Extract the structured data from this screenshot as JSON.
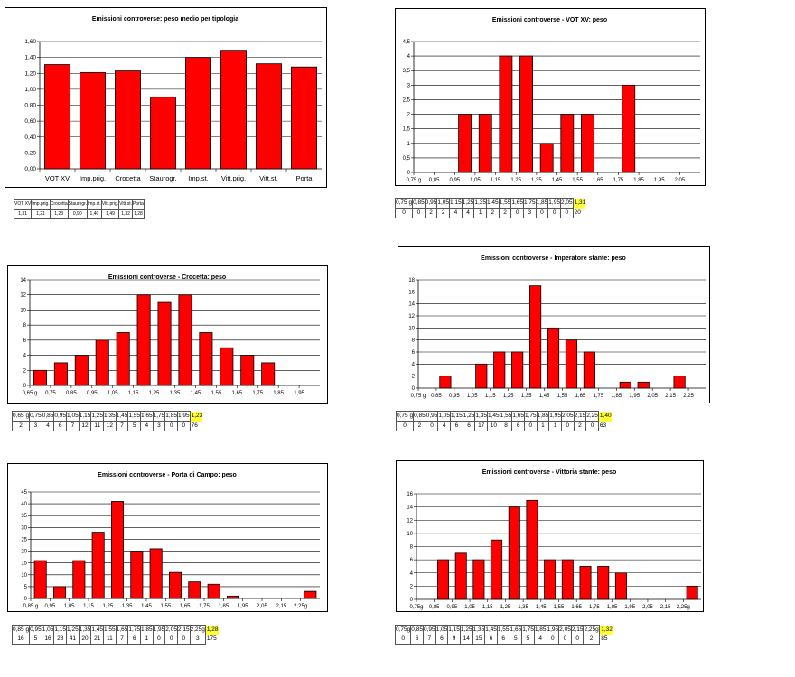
{
  "chart_data": [
    {
      "type": "bar",
      "title": "Emissioni controverse: peso medio per tipologia",
      "categories": [
        "VOT XV",
        "Imp.prig.",
        "Crocetta",
        "Staurogr.",
        "Imp.st.",
        "Vitt.prig.",
        "Vitt.st.",
        "Porta"
      ],
      "values": [
        1.31,
        1.21,
        1.23,
        0.9,
        1.4,
        1.49,
        1.32,
        1.28
      ],
      "yticks": [
        "0,00",
        "0,20",
        "0,40",
        "0,60",
        "0,80",
        "1,00",
        "1,20",
        "1,40",
        "1,60"
      ],
      "ylim": [
        0,
        1.6
      ],
      "bar_color": "#ff0000",
      "table": {
        "headers": [
          "VOT XV",
          "Imp.prig.",
          "Crocetta",
          "Staurogr.",
          "Imp.st.",
          "Vitt.prig.",
          "Vitt.st.",
          "Porta"
        ],
        "values": [
          "1,31",
          "1,21",
          "1,23",
          "0,90",
          "1,40",
          "1,49",
          "1,32",
          "1,28"
        ]
      }
    },
    {
      "type": "bar",
      "title": "Emissioni controverse - VOT XV: peso",
      "categories": [
        "0,75 g",
        "0,85",
        "0,95",
        "1,05",
        "1,15",
        "1,25",
        "1,35",
        "1,45",
        "1,55",
        "1,65",
        "1,75",
        "1,85",
        "1,95",
        "2,05"
      ],
      "values": [
        0,
        0,
        2,
        2,
        4,
        4,
        1,
        2,
        2,
        0,
        3,
        0,
        0,
        0
      ],
      "yticks": [
        "0",
        "0,5",
        "1",
        "1,5",
        "2",
        "2,5",
        "3",
        "3,5",
        "4",
        "4,5"
      ],
      "ylim": [
        0,
        4.5
      ],
      "bar_color": "#ff0000",
      "table": {
        "headers": [
          "0,75 g",
          "0,85",
          "0,95",
          "1,05",
          "1,15",
          "1,25",
          "1,35",
          "1,45",
          "1,55",
          "1,65",
          "1,75",
          "1,85",
          "1,95",
          "2,05"
        ],
        "values": [
          "0",
          "0",
          "2",
          "2",
          "4",
          "4",
          "1",
          "2",
          "2",
          "0",
          "3",
          "0",
          "0",
          "0"
        ],
        "mean": "1,31",
        "total": "20"
      }
    },
    {
      "type": "bar",
      "title": "Emissioni controverse - Crocetta: peso",
      "categories": [
        "0,65 g",
        "0,75",
        "0,85",
        "0,95",
        "1,05",
        "1,15",
        "1,25",
        "1,35",
        "1,45",
        "1,55",
        "1,65",
        "1,75",
        "1,85",
        "1,95"
      ],
      "values": [
        2,
        3,
        4,
        6,
        7,
        12,
        11,
        12,
        7,
        5,
        4,
        3,
        0,
        0
      ],
      "yticks": [
        "0",
        "2",
        "4",
        "6",
        "8",
        "10",
        "12",
        "14"
      ],
      "ylim": [
        0,
        14
      ],
      "bar_color": "#ff0000",
      "table": {
        "headers": [
          "0,65 g",
          "0,75",
          "0,85",
          "0,95",
          "1,05",
          "1,15",
          "1,25",
          "1,35",
          "1,45",
          "1,55",
          "1,65",
          "1,75",
          "1,85",
          "1,95"
        ],
        "values": [
          "2",
          "3",
          "4",
          "6",
          "7",
          "12",
          "11",
          "12",
          "7",
          "5",
          "4",
          "3",
          "0",
          "0"
        ],
        "mean": "1,23",
        "total": "76"
      }
    },
    {
      "type": "bar",
      "title": "Emissioni controverse - Imperatore stante: peso",
      "categories": [
        "0,75 g",
        "0,85",
        "0,95",
        "1,05",
        "1,15",
        "1,25",
        "1,35",
        "1,45",
        "1,55",
        "1,65",
        "1,75",
        "1,85",
        "1,95",
        "2,05",
        "2,15",
        "2,25"
      ],
      "values": [
        0,
        2,
        0,
        4,
        6,
        6,
        17,
        10,
        8,
        6,
        0,
        1,
        1,
        0,
        2,
        0
      ],
      "yticks": [
        "0",
        "2",
        "4",
        "6",
        "8",
        "10",
        "12",
        "14",
        "16",
        "18"
      ],
      "ylim": [
        0,
        18
      ],
      "bar_color": "#ff0000",
      "table": {
        "headers": [
          "0,75 g",
          "0,85",
          "0,95",
          "1,05",
          "1,15",
          "1,25",
          "1,35",
          "1,45",
          "1,55",
          "1,65",
          "1,75",
          "1,85",
          "1,95",
          "2,05",
          "2,15",
          "2,25"
        ],
        "values": [
          "0",
          "2",
          "0",
          "4",
          "6",
          "6",
          "17",
          "10",
          "8",
          "6",
          "0",
          "1",
          "1",
          "0",
          "2",
          "0"
        ],
        "mean": "1,40",
        "total": "63"
      }
    },
    {
      "type": "bar",
      "title": "Emissioni controverse - Porta di Campo: peso",
      "categories": [
        "0,85 g",
        "0,95",
        "1,05",
        "1,15",
        "1,25",
        "1,35",
        "1,45",
        "1,55",
        "1,65",
        "1,75",
        "1,85",
        "1,95",
        "2,05",
        "2,15",
        "2,25g"
      ],
      "values": [
        16,
        5,
        16,
        28,
        41,
        20,
        21,
        11,
        7,
        6,
        1,
        0,
        0,
        0,
        3
      ],
      "yticks": [
        "0",
        "5",
        "10",
        "15",
        "20",
        "25",
        "30",
        "35",
        "40",
        "45"
      ],
      "ylim": [
        0,
        45
      ],
      "bar_color": "#ff0000",
      "table": {
        "headers": [
          "0,85 g",
          "0,95",
          "1,05",
          "1,15",
          "1,25",
          "1,35",
          "1,45",
          "1,55",
          "1,65",
          "1,75",
          "1,85",
          "1,95",
          "2,05",
          "2,15",
          "2,25g"
        ],
        "values": [
          "16",
          "5",
          "16",
          "28",
          "41",
          "20",
          "21",
          "11",
          "7",
          "6",
          "1",
          "0",
          "0",
          "0",
          "3"
        ],
        "mean": "1,28",
        "total": "175"
      }
    },
    {
      "type": "bar",
      "title": "Emissioni controverse - Vittoria stante: peso",
      "categories": [
        "0,75g",
        "0,85",
        "0,95",
        "1,05",
        "1,15",
        "1,25",
        "1,35",
        "1,45",
        "1,55",
        "1,65",
        "1,75",
        "1,85",
        "1,95",
        "2,05",
        "2,15",
        "2,25g"
      ],
      "values": [
        0,
        6,
        7,
        6,
        9,
        14,
        15,
        6,
        6,
        5,
        5,
        4,
        0,
        0,
        0,
        2
      ],
      "yticks": [
        "0",
        "2",
        "4",
        "6",
        "8",
        "10",
        "12",
        "14",
        "16"
      ],
      "ylim": [
        0,
        16
      ],
      "bar_color": "#ff0000",
      "table": {
        "headers": [
          "0,75g",
          "0,85",
          "0,95",
          "1,05",
          "1,15",
          "1,25",
          "1,35",
          "1,45",
          "1,55",
          "1,65",
          "1,75",
          "1,85",
          "1,95",
          "2,05",
          "2,15",
          "2,25g"
        ],
        "values": [
          "0",
          "6",
          "7",
          "6",
          "9",
          "14",
          "15",
          "6",
          "6",
          "5",
          "5",
          "4",
          "0",
          "0",
          "0",
          "2"
        ],
        "mean": "1,32",
        "total": "85"
      }
    }
  ]
}
